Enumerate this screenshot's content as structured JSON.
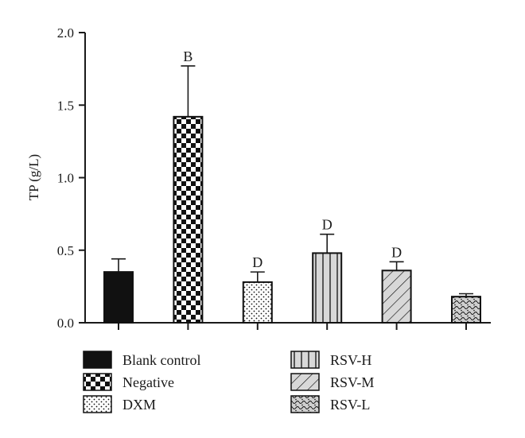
{
  "chart_data": {
    "type": "bar",
    "ylabel": "TP (g/L)",
    "xlabel": "",
    "ylim": [
      0,
      2.0
    ],
    "yticks": [
      "0.0",
      "0.5",
      "1.0",
      "1.5",
      "2.0"
    ],
    "categories": [
      "Blank control",
      "Negative",
      "DXM",
      "RSV-H",
      "RSV-M",
      "RSV-L"
    ],
    "values": [
      0.35,
      1.42,
      0.28,
      0.48,
      0.36,
      0.18
    ],
    "errors": [
      0.09,
      0.35,
      0.07,
      0.13,
      0.06,
      0.02
    ],
    "significance": [
      "",
      "B",
      "D",
      "D",
      "D",
      ""
    ],
    "patterns": [
      "solid-black",
      "checkerboard",
      "dots",
      "vertical-lines",
      "diagonal-lines",
      "wavy"
    ],
    "legend": [
      {
        "label": "Blank control",
        "pattern": "solid-black"
      },
      {
        "label": "Negative",
        "pattern": "checkerboard"
      },
      {
        "label": "DXM",
        "pattern": "dots"
      },
      {
        "label": "RSV-H",
        "pattern": "vertical-lines"
      },
      {
        "label": "RSV-M",
        "pattern": "diagonal-lines"
      },
      {
        "label": "RSV-L",
        "pattern": "wavy"
      }
    ],
    "legend_position": "bottom",
    "grid": false
  }
}
